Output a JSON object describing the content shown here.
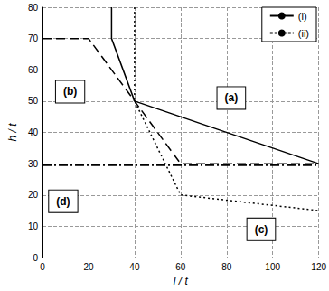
{
  "chart_data": {
    "type": "line",
    "xlabel": "l / t",
    "ylabel": "h / t",
    "xlim": [
      0,
      120
    ],
    "ylim": [
      0,
      80
    ],
    "xticks": [
      0,
      20,
      40,
      60,
      80,
      100,
      120
    ],
    "yticks": [
      0,
      10,
      20,
      30,
      40,
      50,
      60,
      70,
      80
    ],
    "grid": true,
    "legend": "upper right",
    "series": [
      {
        "name": "(i)",
        "color": "#000000",
        "line_style": "solid",
        "x": [],
        "values": []
      },
      {
        "name": "(ii)",
        "color": "#000000",
        "line_style": "hatched",
        "x": [],
        "values": []
      },
      {
        "name": "(a)",
        "color": "#000000",
        "line_style": "solid",
        "x": [
          30,
          30,
          40,
          120
        ],
        "values": [
          80,
          70,
          50,
          30
        ],
        "label_at": [
          82,
          51
        ]
      },
      {
        "name": "(b)",
        "color": "#000000",
        "line_style": "dashed",
        "x": [
          0,
          20,
          40,
          60,
          120
        ],
        "values": [
          70,
          70,
          50,
          30,
          30
        ],
        "label_at": [
          12,
          53
        ]
      },
      {
        "name": "(c)",
        "color": "#000000",
        "line_style": "dotted",
        "x": [
          40,
          40,
          60,
          120
        ],
        "values": [
          80,
          50,
          20,
          15
        ],
        "label_at": [
          95,
          9
        ]
      },
      {
        "name": "(d)",
        "color": "#000000",
        "line_style": "dashdot",
        "x": [
          0,
          120
        ],
        "values": [
          29.5,
          29.5
        ],
        "label_at": [
          9,
          18
        ]
      }
    ]
  }
}
